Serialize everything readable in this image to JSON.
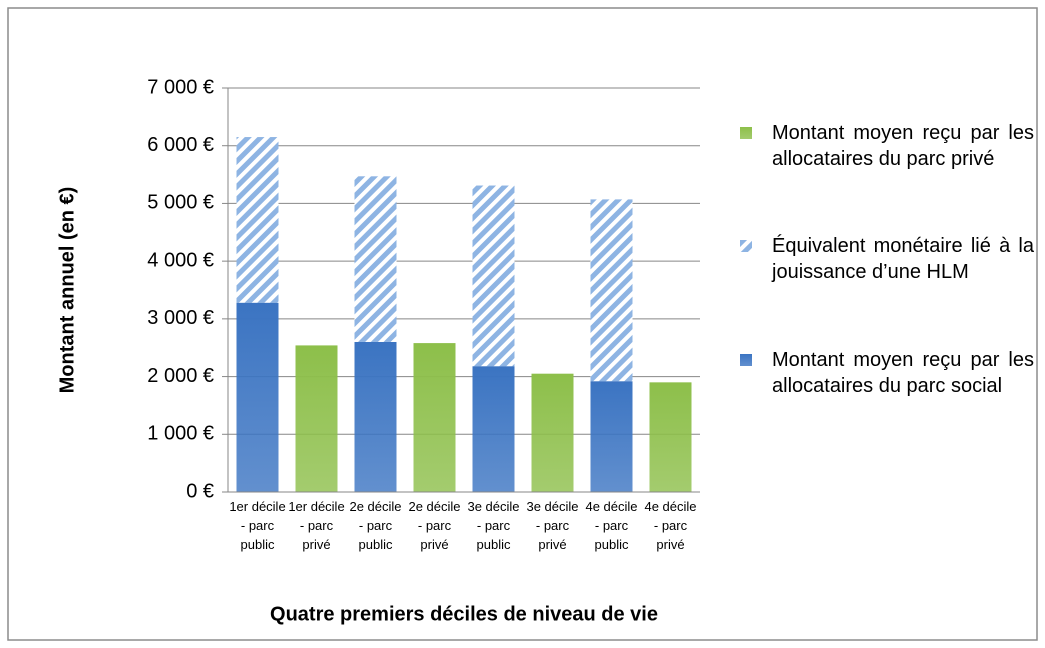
{
  "chart_data": {
    "type": "stacked_bar",
    "categories": [
      "1er décile - parc public",
      "1er décile - parc privé",
      "2e décile - parc public",
      "2e décile - parc privé",
      "3e décile - parc public",
      "3e décile - parc privé",
      "4e décile - parc public",
      "4e décile - parc privé"
    ],
    "series": [
      {
        "name": "Montant moyen reçu par les allocataires du parc privé",
        "color": "#8dbf4a",
        "values": [
          null,
          2540,
          null,
          2580,
          null,
          2050,
          null,
          1900
        ]
      },
      {
        "name": "Équivalent monétaire lié à la jouissance d’une HLM",
        "color": "#8eb4e3",
        "pattern": "hatch",
        "values": [
          2870,
          null,
          2870,
          null,
          3130,
          null,
          3150,
          null
        ]
      },
      {
        "name": "Montant moyen reçu par les allocataires du parc social",
        "color": "#3b74c2",
        "values": [
          3280,
          null,
          2600,
          null,
          2180,
          null,
          1920,
          null
        ]
      }
    ],
    "ylabel": "Montant annuel (en €)",
    "xlabel": "Quatre premiers déciles de niveau de vie",
    "ylim": [
      0,
      7000
    ],
    "yticks": [
      {
        "value": 0,
        "label": "0 €"
      },
      {
        "value": 1000,
        "label": "1 000 €"
      },
      {
        "value": 2000,
        "label": "2 000 €"
      },
      {
        "value": 3000,
        "label": "3 000 €"
      },
      {
        "value": 4000,
        "label": "4 000 €"
      },
      {
        "value": 5000,
        "label": "5 000 €"
      },
      {
        "value": 6000,
        "label": "6 000 €"
      },
      {
        "value": 7000,
        "label": "7 000 €"
      }
    ],
    "grid": true,
    "legend": "right"
  }
}
